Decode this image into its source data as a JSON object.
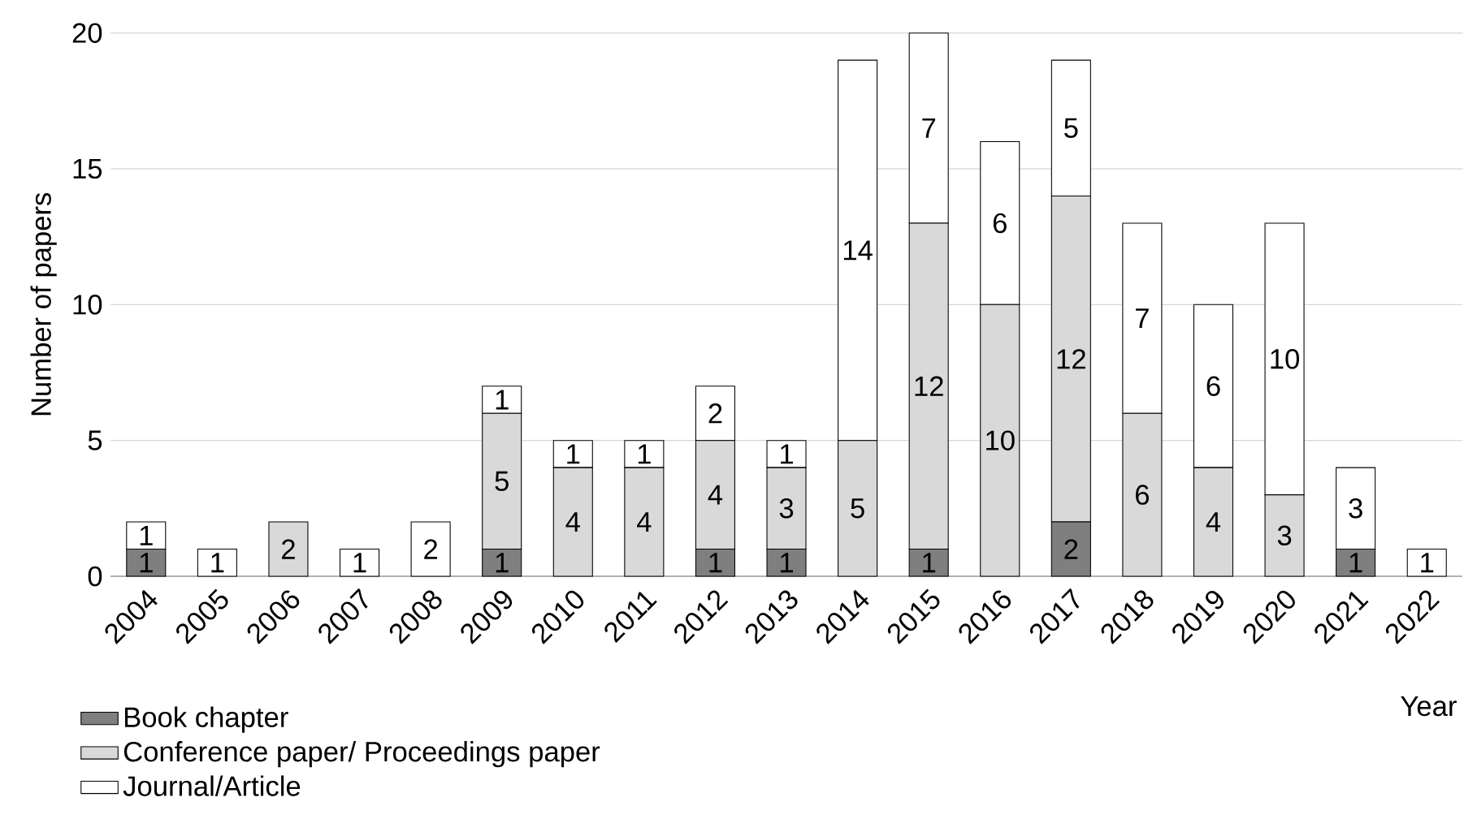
{
  "chart_data": {
    "type": "bar",
    "stacked": true,
    "xlabel": "Year",
    "ylabel": "Number of papers",
    "categories": [
      "2004",
      "2005",
      "2006",
      "2007",
      "2008",
      "2009",
      "2010",
      "2011",
      "2012",
      "2013",
      "2014",
      "2015",
      "2016",
      "2017",
      "2018",
      "2019",
      "2020",
      "2021",
      "2022"
    ],
    "series": [
      {
        "name": "Book chapter",
        "color": "#7f7f7f",
        "values": [
          1,
          0,
          0,
          0,
          0,
          1,
          0,
          0,
          1,
          1,
          0,
          1,
          0,
          2,
          0,
          0,
          0,
          1,
          0
        ],
        "value_labels": [
          "1",
          null,
          null,
          null,
          null,
          "1",
          null,
          null,
          "1",
          "1",
          null,
          "1",
          null,
          "2",
          null,
          null,
          null,
          "1",
          null
        ]
      },
      {
        "name": "Conference paper/ Proceedings paper",
        "color": "#d9d9d9",
        "values": [
          0,
          0,
          2,
          0,
          0,
          5,
          4,
          4,
          4,
          3,
          5,
          12,
          10,
          12,
          6,
          4,
          3,
          0,
          0
        ],
        "value_labels": [
          null,
          null,
          "2",
          null,
          null,
          "5",
          "4",
          "4",
          "4",
          "3",
          "5",
          "12",
          "10",
          "12",
          "6",
          "4",
          "3",
          null,
          null
        ]
      },
      {
        "name": "Journal/Article",
        "color": "#ffffff",
        "values": [
          1,
          1,
          0,
          1,
          2,
          1,
          1,
          1,
          2,
          1,
          14,
          7,
          6,
          5,
          7,
          6,
          10,
          3,
          1
        ],
        "value_labels": [
          "1",
          "1",
          null,
          "1",
          "2",
          "1",
          "1",
          "1",
          "2",
          "1",
          "14",
          "7",
          "6",
          "5",
          "7",
          "6",
          "10",
          "3",
          "1"
        ]
      }
    ],
    "ylim": [
      0,
      20
    ],
    "yticks": [
      0,
      5,
      10,
      15,
      20
    ],
    "grid": "y",
    "legend": "bottom left"
  }
}
